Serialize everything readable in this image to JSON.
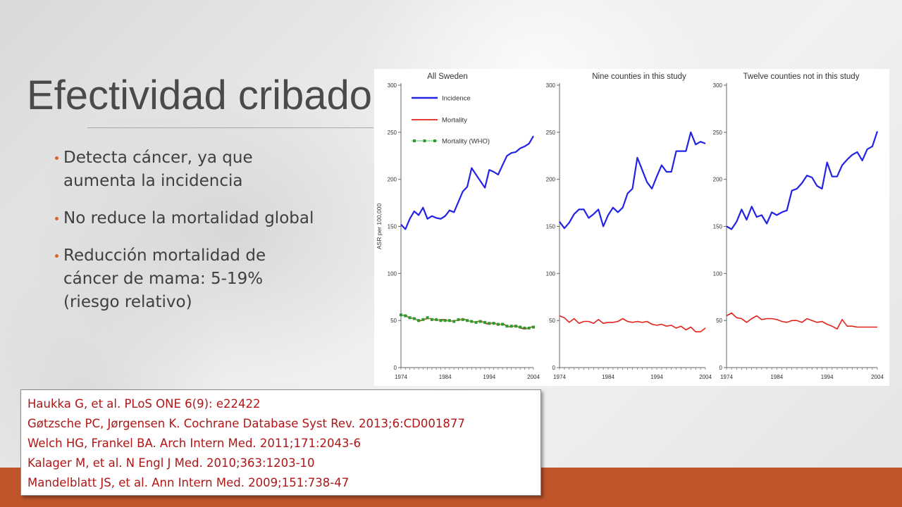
{
  "slide": {
    "title": "Efectividad cribado",
    "bullets": [
      "Detecta cáncer, ya que aumenta la incidencia",
      "No reduce la mortalidad global",
      "Reducción mortalidad de cáncer de mama: 5-19% (riesgo relativo)"
    ],
    "references": [
      "Haukka G, et al. PLoS ONE 6(9): e22422",
      "Gøtzsche PC, Jørgensen K. Cochrane Database Syst Rev. 2013;6:CD001877",
      "Welch HG, Frankel BA. Arch Intern Med. 2011;171:2043-6",
      "Kalager M, et al. N Engl J Med. 2010;363:1203-10",
      "Mandelblatt JS, et al. Ann Intern Med. 2009;151:738-47"
    ],
    "colors": {
      "accent": "#c0552a",
      "bullet": "#d2662f",
      "reference_text": "#b01616",
      "incidence": "#2323e6",
      "mortality": "#e2231a",
      "who_marker": "#2e9a2e"
    }
  },
  "chart_data": [
    {
      "type": "line",
      "title": "All Sweden",
      "ylabel": "ASR per 100,000",
      "xlim": [
        1974,
        2004
      ],
      "ylim": [
        0,
        300
      ],
      "x_ticks": [
        1974,
        1984,
        1994,
        2004
      ],
      "y_ticks": [
        0,
        50,
        100,
        150,
        200,
        250,
        300
      ],
      "legend": [
        "Incidence",
        "Mortality",
        "Mortality (WHO)"
      ],
      "legend_position": "top-left",
      "series": [
        {
          "name": "Incidence",
          "x": [
            1974,
            1975,
            1976,
            1977,
            1978,
            1979,
            1980,
            1981,
            1982,
            1983,
            1984,
            1985,
            1986,
            1987,
            1988,
            1989,
            1990,
            1991,
            1992,
            1993,
            1994,
            1995,
            1996,
            1997,
            1998,
            1999,
            2000,
            2001,
            2002,
            2003,
            2004
          ],
          "values": [
            152,
            147,
            158,
            166,
            162,
            170,
            158,
            161,
            159,
            158,
            161,
            167,
            165,
            176,
            187,
            192,
            212,
            205,
            198,
            191,
            210,
            208,
            205,
            215,
            225,
            228,
            229,
            233,
            235,
            238,
            246
          ]
        },
        {
          "name": "Mortality",
          "x": [
            1974,
            1975,
            1976,
            1977,
            1978,
            1979,
            1980,
            1981,
            1982,
            1983,
            1984,
            1985,
            1986,
            1987,
            1988,
            1989,
            1990,
            1991,
            1992,
            1993,
            1994,
            1995,
            1996,
            1997,
            1998,
            1999,
            2000,
            2001,
            2002,
            2003,
            2004
          ],
          "values": [
            55,
            56,
            52,
            53,
            49,
            51,
            52,
            52,
            50,
            51,
            51,
            49,
            50,
            50,
            52,
            50,
            49,
            48,
            50,
            47,
            46,
            48,
            45,
            47,
            44,
            43,
            45,
            42,
            41,
            42,
            44
          ]
        },
        {
          "name": "Mortality (WHO)",
          "x": [
            1974,
            1975,
            1976,
            1977,
            1978,
            1979,
            1980,
            1981,
            1982,
            1983,
            1984,
            1985,
            1986,
            1987,
            1988,
            1989,
            1990,
            1991,
            1992,
            1993,
            1994,
            1995,
            1996,
            1997,
            1998,
            1999,
            2000,
            2001,
            2002,
            2003,
            2004
          ],
          "values": [
            56,
            55,
            53,
            52,
            50,
            51,
            53,
            51,
            51,
            50,
            50,
            50,
            49,
            51,
            51,
            50,
            49,
            48,
            49,
            48,
            47,
            47,
            46,
            46,
            44,
            44,
            44,
            43,
            42,
            42,
            43
          ]
        }
      ]
    },
    {
      "type": "line",
      "title": "Nine counties in this study",
      "xlim": [
        1974,
        2004
      ],
      "ylim": [
        0,
        300
      ],
      "x_ticks": [
        1974,
        1984,
        1994,
        2004
      ],
      "y_ticks": [
        0,
        50,
        100,
        150,
        200,
        250,
        300
      ],
      "series": [
        {
          "name": "Incidence",
          "x": [
            1974,
            1975,
            1976,
            1977,
            1978,
            1979,
            1980,
            1981,
            1982,
            1983,
            1984,
            1985,
            1986,
            1987,
            1988,
            1989,
            1990,
            1991,
            1992,
            1993,
            1994,
            1995,
            1996,
            1997,
            1998,
            1999,
            2000,
            2001,
            2002,
            2003,
            2004
          ],
          "values": [
            155,
            148,
            154,
            163,
            168,
            168,
            159,
            163,
            168,
            150,
            162,
            170,
            165,
            170,
            185,
            190,
            223,
            210,
            197,
            190,
            203,
            215,
            208,
            208,
            230,
            230,
            230,
            250,
            237,
            240,
            238
          ]
        },
        {
          "name": "Mortality",
          "x": [
            1974,
            1975,
            1976,
            1977,
            1978,
            1979,
            1980,
            1981,
            1982,
            1983,
            1984,
            1985,
            1986,
            1987,
            1988,
            1989,
            1990,
            1991,
            1992,
            1993,
            1994,
            1995,
            1996,
            1997,
            1998,
            1999,
            2000,
            2001,
            2002,
            2003,
            2004
          ],
          "values": [
            55,
            53,
            48,
            52,
            47,
            49,
            49,
            47,
            51,
            47,
            48,
            48,
            49,
            52,
            49,
            48,
            49,
            48,
            49,
            46,
            45,
            46,
            44,
            45,
            42,
            44,
            40,
            43,
            38,
            38,
            42
          ]
        }
      ]
    },
    {
      "type": "line",
      "title": "Twelve counties not in this study",
      "xlim": [
        1974,
        2004
      ],
      "ylim": [
        0,
        300
      ],
      "x_ticks": [
        1974,
        1984,
        1994,
        2004
      ],
      "y_ticks": [
        0,
        50,
        100,
        150,
        200,
        250,
        300
      ],
      "series": [
        {
          "name": "Incidence",
          "x": [
            1974,
            1975,
            1976,
            1977,
            1978,
            1979,
            1980,
            1981,
            1982,
            1983,
            1984,
            1985,
            1986,
            1987,
            1988,
            1989,
            1990,
            1991,
            1992,
            1993,
            1994,
            1995,
            1996,
            1997,
            1998,
            1999,
            2000,
            2001,
            2002,
            2003,
            2004
          ],
          "values": [
            150,
            147,
            155,
            168,
            157,
            171,
            160,
            162,
            153,
            165,
            162,
            165,
            167,
            188,
            190,
            196,
            204,
            202,
            193,
            190,
            218,
            203,
            203,
            215,
            221,
            226,
            229,
            220,
            232,
            235,
            251
          ]
        },
        {
          "name": "Mortality",
          "x": [
            1974,
            1975,
            1976,
            1977,
            1978,
            1979,
            1980,
            1981,
            1982,
            1983,
            1984,
            1985,
            1986,
            1987,
            1988,
            1989,
            1990,
            1991,
            1992,
            1993,
            1994,
            1995,
            1996,
            1997,
            1998,
            1999,
            2000,
            2001,
            2002,
            2003,
            2004
          ],
          "values": [
            55,
            58,
            53,
            52,
            48,
            52,
            55,
            51,
            52,
            52,
            51,
            49,
            48,
            50,
            50,
            48,
            52,
            50,
            48,
            49,
            46,
            44,
            41,
            51,
            44,
            44,
            43,
            43,
            43,
            43,
            43
          ]
        }
      ]
    }
  ]
}
